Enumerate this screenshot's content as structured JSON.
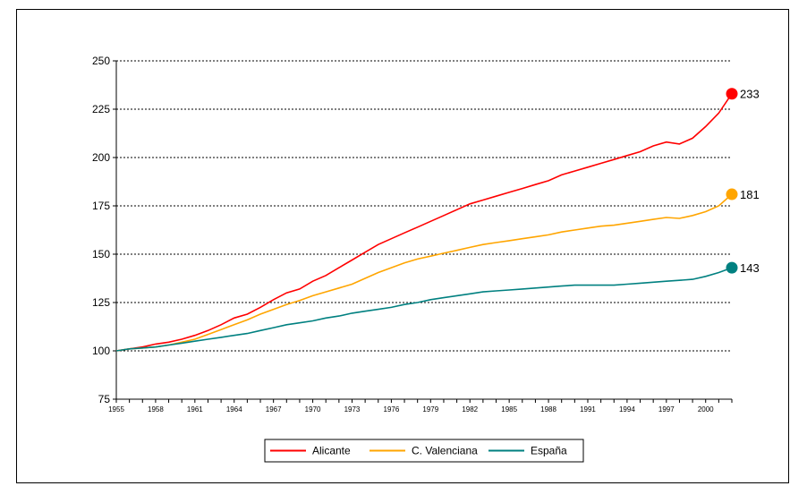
{
  "chart_data": {
    "type": "line",
    "title": "",
    "xlabel": "",
    "ylabel": "",
    "ylim": [
      75,
      250
    ],
    "xlim": [
      1955,
      2002
    ],
    "yticks": [
      75,
      100,
      125,
      150,
      175,
      200,
      225,
      250
    ],
    "xticks": [
      1955,
      1958,
      1961,
      1964,
      1967,
      1970,
      1973,
      1976,
      1979,
      1982,
      1985,
      1988,
      1991,
      1994,
      1997,
      2000
    ],
    "grid": "horizontal dotted",
    "legend_placement": "bottom-center",
    "x": [
      1955,
      1956,
      1957,
      1958,
      1959,
      1960,
      1961,
      1962,
      1963,
      1964,
      1965,
      1966,
      1967,
      1968,
      1969,
      1970,
      1971,
      1972,
      1973,
      1974,
      1975,
      1976,
      1977,
      1978,
      1979,
      1980,
      1981,
      1982,
      1983,
      1984,
      1985,
      1986,
      1987,
      1988,
      1989,
      1990,
      1991,
      1992,
      1993,
      1994,
      1995,
      1996,
      1997,
      1998,
      1999,
      2000,
      2001,
      2002
    ],
    "series": [
      {
        "name": "Alicante",
        "color": "#ff0000",
        "end_label": "233",
        "values": [
          100,
          101,
          102,
          103.5,
          104.5,
          106,
          108,
          110.5,
          113.5,
          117,
          119,
          122.5,
          126.5,
          130,
          132,
          136,
          139,
          143,
          147,
          151,
          155,
          158,
          161,
          164,
          167,
          170,
          173,
          176,
          178,
          180,
          182,
          184,
          186,
          188,
          191,
          193,
          195,
          197,
          199,
          201,
          203,
          206,
          208,
          207,
          210,
          216,
          223,
          233
        ]
      },
      {
        "name": "C. Valenciana",
        "color": "#ffa500",
        "end_label": "181",
        "values": [
          100,
          101,
          101.5,
          102,
          103,
          104.5,
          106,
          108.5,
          111,
          113.5,
          116,
          119,
          121.5,
          124,
          126,
          128.5,
          130.5,
          132.5,
          134.5,
          137.5,
          140.5,
          143,
          145.5,
          147.5,
          149,
          150.5,
          152,
          153.5,
          155,
          156,
          157,
          158,
          159,
          160,
          161.5,
          162.5,
          163.5,
          164.5,
          165,
          166,
          167,
          168,
          169,
          168.5,
          170,
          172,
          175,
          181
        ]
      },
      {
        "name": "España",
        "color": "#008080",
        "end_label": "143",
        "values": [
          100,
          101,
          101.5,
          102,
          103,
          104,
          105,
          106,
          107,
          108,
          109,
          110.5,
          112,
          113.5,
          114.5,
          115.5,
          117,
          118,
          119.5,
          120.5,
          121.5,
          122.5,
          124,
          125,
          126.5,
          127.5,
          128.5,
          129.5,
          130.5,
          131,
          131.5,
          132,
          132.5,
          133,
          133.5,
          134,
          134,
          134,
          134,
          134.5,
          135,
          135.5,
          136,
          136.5,
          137,
          138.5,
          140.5,
          143
        ]
      }
    ]
  }
}
